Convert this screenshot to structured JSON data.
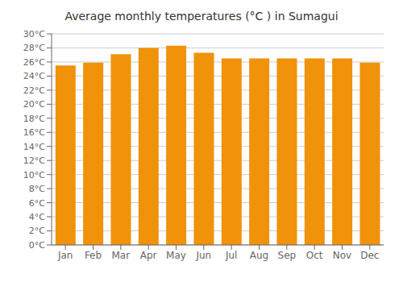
{
  "chart_data": {
    "type": "bar",
    "title": "Average monthly temperatures (°C ) in Sumagui",
    "categories": [
      "Jan",
      "Feb",
      "Mar",
      "Apr",
      "May",
      "Jun",
      "Jul",
      "Aug",
      "Sep",
      "Oct",
      "Nov",
      "Dec"
    ],
    "values": [
      25.5,
      25.9,
      27.1,
      28.0,
      28.3,
      27.3,
      26.5,
      26.5,
      26.5,
      26.5,
      26.5,
      25.9
    ],
    "color": "#F0920A",
    "ylim": [
      0,
      30
    ],
    "yticks": [
      {
        "value": 0,
        "label": "0°C"
      },
      {
        "value": 2,
        "label": "2°C"
      },
      {
        "value": 4,
        "label": "4°C"
      },
      {
        "value": 6,
        "label": "6°C"
      },
      {
        "value": 8,
        "label": "8°C"
      },
      {
        "value": 10,
        "label": "10°C"
      },
      {
        "value": 12,
        "label": "12°C"
      },
      {
        "value": 14,
        "label": "14°C"
      },
      {
        "value": 16,
        "label": "16°C"
      },
      {
        "value": 18,
        "label": "18°C"
      },
      {
        "value": 20,
        "label": "20°C"
      },
      {
        "value": 22,
        "label": "22°C"
      },
      {
        "value": 24,
        "label": "24°C"
      },
      {
        "value": 26,
        "label": "26°C"
      },
      {
        "value": 28,
        "label": "28°C"
      },
      {
        "value": 30,
        "label": "30°C"
      }
    ],
    "grid": true
  }
}
